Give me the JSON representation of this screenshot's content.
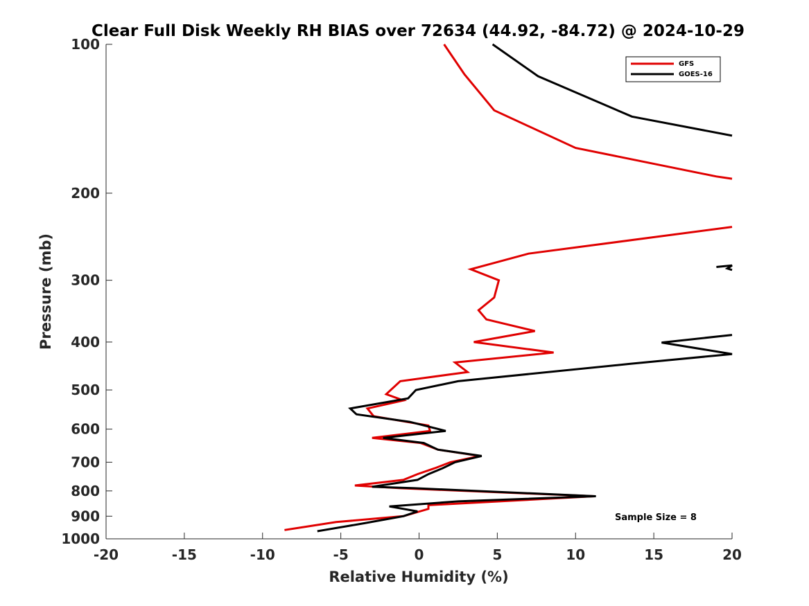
{
  "chart_data": {
    "type": "line",
    "title": "Clear Full Disk Weekly RH BIAS over 72634 (44.92, -84.72) @ 2024-10-29",
    "xlabel": "Relative Humidity (%)",
    "ylabel": "Pressure (mb)",
    "xlim": [
      -20,
      20
    ],
    "ylim": [
      1000,
      100
    ],
    "yscale": "log",
    "xticks": [
      -20,
      -15,
      -10,
      -5,
      0,
      5,
      10,
      15,
      20
    ],
    "xtick_labels": [
      "-20",
      "-15",
      "-10",
      "-5",
      "0",
      "5",
      "10",
      "15",
      "20"
    ],
    "yticks": [
      100,
      200,
      300,
      400,
      500,
      600,
      700,
      800,
      900,
      1000
    ],
    "ytick_labels": [
      "100",
      "200",
      "300",
      "400",
      "500",
      "600",
      "700",
      "800",
      "900",
      "1000"
    ],
    "grid": false,
    "legend_position": "top-right",
    "annotation": "Sample Size = 8",
    "series": [
      {
        "name": "GFS",
        "color": "#e00000",
        "points": [
          [
            1.6,
            100
          ],
          [
            2.9,
            115
          ],
          [
            4.8,
            136
          ],
          [
            10.0,
            162
          ],
          [
            19.0,
            185
          ],
          [
            20.0,
            187
          ],
          [
            null,
            null
          ],
          [
            20.0,
            234
          ],
          [
            7.0,
            265
          ],
          [
            3.3,
            285
          ],
          [
            5.1,
            300
          ],
          [
            4.8,
            325
          ],
          [
            3.8,
            345
          ],
          [
            4.3,
            360
          ],
          [
            7.4,
            380
          ],
          [
            3.5,
            400
          ],
          [
            8.6,
            420
          ],
          [
            2.3,
            440
          ],
          [
            3.1,
            460
          ],
          [
            -1.2,
            480
          ],
          [
            -2.1,
            510
          ],
          [
            -1.0,
            525
          ],
          [
            -3.3,
            545
          ],
          [
            -2.9,
            565
          ],
          [
            0.6,
            590
          ],
          [
            0.7,
            605
          ],
          [
            -3.0,
            625
          ],
          [
            0.1,
            640
          ],
          [
            1.2,
            660
          ],
          [
            3.9,
            680
          ],
          [
            2.0,
            700
          ],
          [
            1.0,
            720
          ],
          [
            -0.1,
            740
          ],
          [
            -1.0,
            760
          ],
          [
            -4.1,
            780
          ],
          [
            -1.2,
            790
          ],
          [
            11.2,
            820
          ],
          [
            0.6,
            855
          ],
          [
            0.6,
            870
          ],
          [
            -1.0,
            900
          ],
          [
            -5.3,
            925
          ],
          [
            -8.6,
            960
          ]
        ]
      },
      {
        "name": "GOES-16",
        "color": "#000000",
        "points": [
          [
            4.7,
            100
          ],
          [
            7.6,
            116
          ],
          [
            13.6,
            140
          ],
          [
            20.0,
            153
          ],
          [
            null,
            null
          ],
          [
            19.0,
            282
          ],
          [
            20.0,
            280
          ],
          [
            19.7,
            284
          ],
          [
            20.0,
            286
          ],
          [
            null,
            null
          ],
          [
            20.0,
            387
          ],
          [
            15.5,
            401
          ],
          [
            20.0,
            423
          ],
          [
            13.4,
            443
          ],
          [
            2.5,
            480
          ],
          [
            -0.2,
            500
          ],
          [
            -0.7,
            520
          ],
          [
            -4.4,
            545
          ],
          [
            -4.0,
            560
          ],
          [
            -0.6,
            580
          ],
          [
            1.7,
            605
          ],
          [
            -2.3,
            625
          ],
          [
            0.3,
            640
          ],
          [
            1.2,
            660
          ],
          [
            4.0,
            680
          ],
          [
            2.3,
            700
          ],
          [
            1.5,
            720
          ],
          [
            0.6,
            740
          ],
          [
            -0.1,
            760
          ],
          [
            -3.0,
            785
          ],
          [
            -0.3,
            790
          ],
          [
            11.3,
            820
          ],
          [
            2.5,
            840
          ],
          [
            -1.9,
            860
          ],
          [
            -0.1,
            880
          ],
          [
            -1.0,
            900
          ],
          [
            -3.5,
            930
          ],
          [
            -6.5,
            965
          ]
        ]
      }
    ]
  }
}
